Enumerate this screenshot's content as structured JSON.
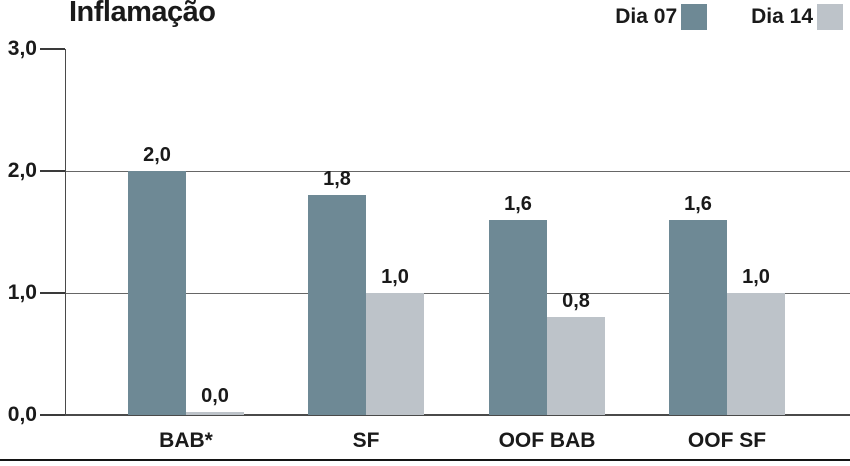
{
  "title": "Inflamação",
  "legend": [
    {
      "label": "Dia 07",
      "color": "#6e8995",
      "swatch_icon": "legend-swatch-dark"
    },
    {
      "label": "Dia 14",
      "color": "#bdc3c9",
      "swatch_icon": "legend-swatch-light"
    }
  ],
  "chart_data": {
    "type": "bar",
    "title": "Inflamação",
    "categories": [
      "BAB*",
      "SF",
      "OOF BAB",
      "OOF SF"
    ],
    "series": [
      {
        "name": "Dia 07",
        "color": "#6e8995",
        "values": [
          2.0,
          1.8,
          1.6,
          1.6
        ],
        "value_labels": [
          "2,0",
          "1,8",
          "1,6",
          "1,6"
        ]
      },
      {
        "name": "Dia 14",
        "color": "#bdc3c9",
        "values": [
          0.0,
          1.0,
          0.8,
          1.0
        ],
        "value_labels": [
          "0,0",
          "1,0",
          "0,8",
          "1,0"
        ]
      }
    ],
    "y_ticks": [
      {
        "label": "3,0",
        "value": 3.0
      },
      {
        "label": "2,0",
        "value": 2.0
      },
      {
        "label": "1,0",
        "value": 1.0
      },
      {
        "label": "0,0",
        "value": 0.0
      }
    ],
    "ylim": [
      0,
      3
    ],
    "xlabel": "",
    "ylabel": "",
    "grid": true,
    "legend_position": "top-right",
    "decimal_separator": ",",
    "bar_value_labels_shown": true
  },
  "colors": {
    "series_dark": "#6e8995",
    "series_light": "#bdc3c9",
    "gridline": "#666666",
    "axis": "#4a4a4a",
    "text": "#1a1a1a",
    "bottom_rule": "#141414",
    "background": "#ffffff"
  }
}
